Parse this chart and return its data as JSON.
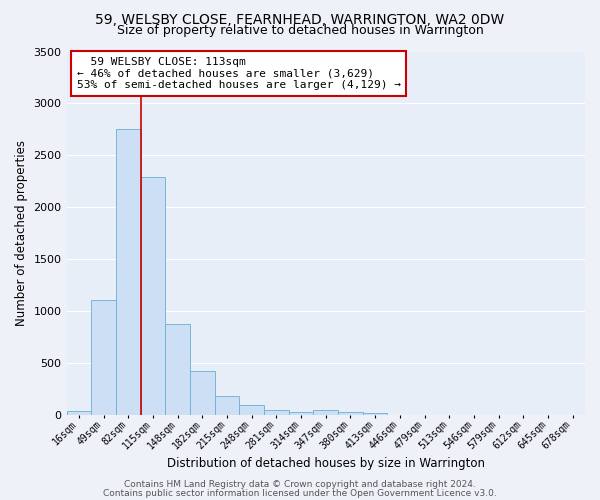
{
  "title1": "59, WELSBY CLOSE, FEARNHEAD, WARRINGTON, WA2 0DW",
  "title2": "Size of property relative to detached houses in Warrington",
  "xlabel": "Distribution of detached houses by size in Warrington",
  "ylabel": "Number of detached properties",
  "bar_labels": [
    "16sqm",
    "49sqm",
    "82sqm",
    "115sqm",
    "148sqm",
    "182sqm",
    "215sqm",
    "248sqm",
    "281sqm",
    "314sqm",
    "347sqm",
    "380sqm",
    "413sqm",
    "446sqm",
    "479sqm",
    "513sqm",
    "546sqm",
    "579sqm",
    "612sqm",
    "645sqm",
    "678sqm"
  ],
  "bar_values": [
    40,
    1110,
    2750,
    2290,
    880,
    430,
    185,
    100,
    55,
    30,
    55,
    30,
    20,
    5,
    0,
    0,
    0,
    0,
    0,
    0,
    0
  ],
  "bar_color": "#ccdff5",
  "bar_edge_color": "#6aafd6",
  "vline_color": "#cc0000",
  "annotation_title": "59 WELSBY CLOSE: 113sqm",
  "annotation_line1": "← 46% of detached houses are smaller (3,629)",
  "annotation_line2": "53% of semi-detached houses are larger (4,129) →",
  "ylim": [
    0,
    3500
  ],
  "yticks": [
    0,
    500,
    1000,
    1500,
    2000,
    2500,
    3000,
    3500
  ],
  "footer1": "Contains HM Land Registry data © Crown copyright and database right 2024.",
  "footer2": "Contains public sector information licensed under the Open Government Licence v3.0.",
  "bg_color": "#eef2f8",
  "plot_bg_color": "#e8eef8",
  "grid_color": "#ffffff",
  "annotation_box_color": "#ffffff",
  "annotation_box_edge": "#cc0000",
  "title1_fontsize": 10,
  "title2_fontsize": 9,
  "annotation_fontsize": 8,
  "xlabel_fontsize": 8.5,
  "ylabel_fontsize": 8.5,
  "tick_fontsize": 8,
  "xtick_fontsize": 7,
  "footer_fontsize": 6.5
}
